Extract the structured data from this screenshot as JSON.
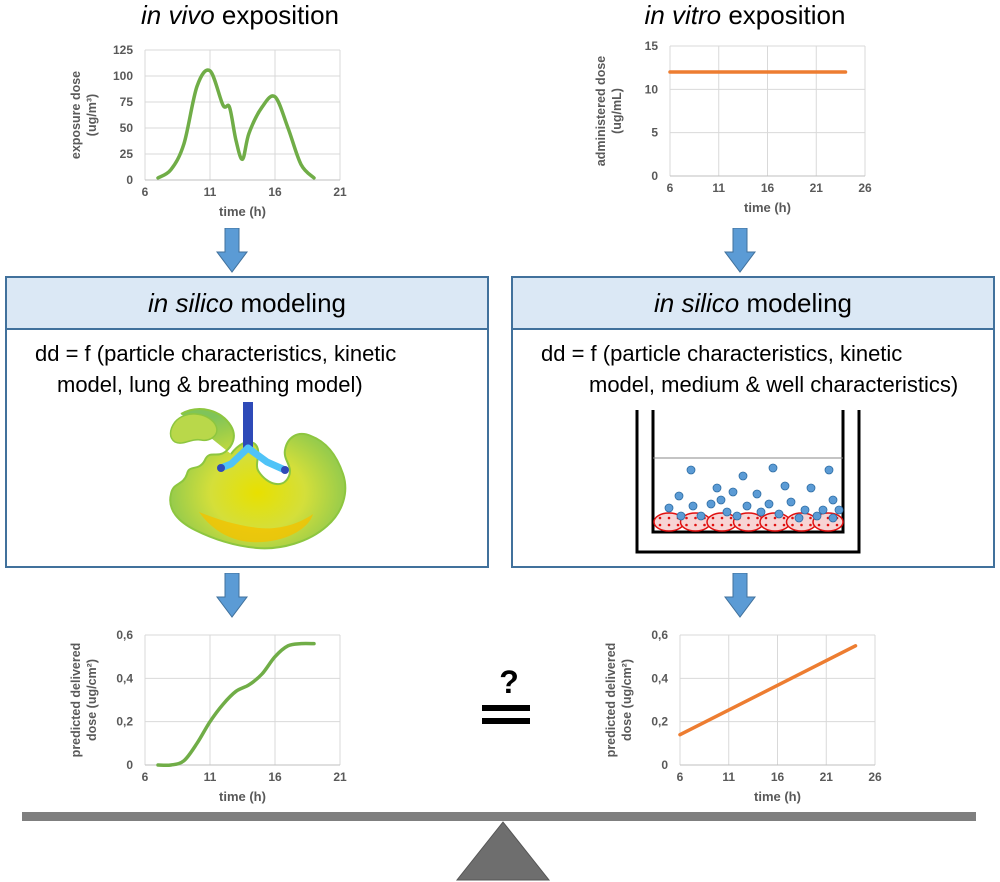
{
  "left": {
    "title_em": "in vivo",
    "title_rest": " exposition",
    "panel_title_em": "in silico",
    "panel_title_rest": " modeling",
    "formula_line1": "dd = f (particle characteristics, kinetic",
    "formula_line2": "model, lung & breathing model)",
    "image_icon": "lung-deposition-map"
  },
  "right": {
    "title_em": "in vitro",
    "title_rest": " exposition",
    "panel_title_em": "in silico",
    "panel_title_rest": " modeling",
    "formula_line1": "dd = f (particle characteristics, kinetic",
    "formula_line2": "model, medium & well characteristics)",
    "image_icon": "cell-culture-well"
  },
  "comparison_symbol": "?",
  "colors": {
    "green": "#70ad47",
    "orange": "#ed7d31",
    "arrow": "#5b9bd5",
    "panel_border": "#41719c",
    "panel_head": "#dbe8f5"
  },
  "chart_data": [
    {
      "id": "invivo-exposure",
      "type": "line",
      "xlabel": "time (h)",
      "ylabel_lines": [
        "exposure dose",
        "(ug/m³)"
      ],
      "xlim": [
        6,
        21
      ],
      "ylim": [
        0,
        125
      ],
      "x_ticks": [
        6,
        11,
        16,
        21
      ],
      "y_ticks": [
        0,
        25,
        50,
        75,
        100,
        125
      ],
      "x_tick_labels": [
        "6",
        "11",
        "16",
        "21"
      ],
      "y_tick_labels": [
        "0",
        "25",
        "50",
        "75",
        "100",
        "125"
      ],
      "color": "#70ad47",
      "series": [
        {
          "x": [
            7,
            8,
            9,
            10,
            11,
            12,
            12.5,
            13,
            13.5,
            14,
            15,
            16,
            17,
            18,
            19
          ],
          "y": [
            2,
            10,
            35,
            90,
            105,
            72,
            70,
            38,
            20,
            45,
            70,
            80,
            50,
            15,
            2
          ]
        }
      ]
    },
    {
      "id": "invitro-administered",
      "type": "line",
      "xlabel": "time (h)",
      "ylabel_lines": [
        "administered dose",
        "(ug/mL)"
      ],
      "xlim": [
        6,
        26
      ],
      "ylim": [
        0,
        15
      ],
      "x_ticks": [
        6,
        11,
        16,
        21,
        26
      ],
      "y_ticks": [
        0,
        5,
        10,
        15
      ],
      "x_tick_labels": [
        "6",
        "11",
        "16",
        "21",
        "26"
      ],
      "y_tick_labels": [
        "0",
        "5",
        "10",
        "15"
      ],
      "color": "#ed7d31",
      "series": [
        {
          "x": [
            6,
            24
          ],
          "y": [
            12,
            12
          ]
        }
      ]
    },
    {
      "id": "invivo-delivered",
      "type": "line",
      "xlabel": "time (h)",
      "ylabel_lines": [
        "predicted delivered",
        "dose (ug/cm²)"
      ],
      "xlim": [
        6,
        21
      ],
      "ylim": [
        0,
        0.6
      ],
      "x_ticks": [
        6,
        11,
        16,
        21
      ],
      "y_ticks": [
        0,
        0.2,
        0.4,
        0.6
      ],
      "x_tick_labels": [
        "6",
        "11",
        "16",
        "21"
      ],
      "y_tick_labels": [
        "0",
        "0,2",
        "0,4",
        "0,6"
      ],
      "color": "#70ad47",
      "series": [
        {
          "x": [
            7,
            8,
            9,
            10,
            11,
            12,
            13,
            14,
            15,
            16,
            17,
            18,
            19
          ],
          "y": [
            0,
            0,
            0.02,
            0.1,
            0.2,
            0.28,
            0.34,
            0.37,
            0.42,
            0.5,
            0.55,
            0.56,
            0.56
          ]
        }
      ]
    },
    {
      "id": "invitro-delivered",
      "type": "line",
      "xlabel": "time (h)",
      "ylabel_lines": [
        "predicted delivered",
        "dose (ug/cm²)"
      ],
      "xlim": [
        6,
        26
      ],
      "ylim": [
        0,
        0.6
      ],
      "x_ticks": [
        6,
        11,
        16,
        21,
        26
      ],
      "y_ticks": [
        0,
        0.2,
        0.4,
        0.6
      ],
      "x_tick_labels": [
        "6",
        "11",
        "16",
        "21",
        "26"
      ],
      "y_tick_labels": [
        "0",
        "0,2",
        "0,4",
        "0,6"
      ],
      "color": "#ed7d31",
      "series": [
        {
          "x": [
            6,
            24
          ],
          "y": [
            0.14,
            0.55
          ]
        }
      ]
    }
  ]
}
